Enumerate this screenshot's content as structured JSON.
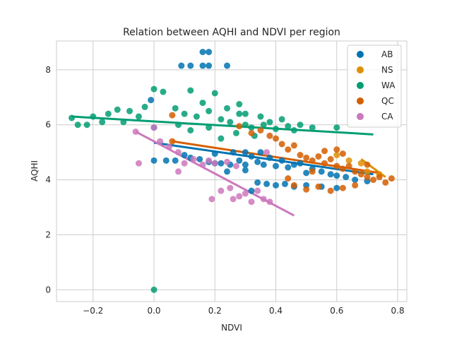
{
  "chart_data": {
    "type": "scatter",
    "title": "Relation between AQHI and NDVI per region",
    "xlabel": "NDVI",
    "ylabel": "AQHI",
    "xlim": [
      -0.32,
      0.83
    ],
    "ylim": [
      -0.43,
      9.05
    ],
    "xticks": [
      -0.2,
      0.0,
      0.2,
      0.4,
      0.6,
      0.8
    ],
    "xtick_labels": [
      "−0.2",
      "0.0",
      "0.2",
      "0.4",
      "0.6",
      "0.8"
    ],
    "yticks": [
      0,
      2,
      4,
      6,
      8
    ],
    "ytick_labels": [
      "0",
      "2",
      "4",
      "6",
      "8"
    ],
    "grid": true,
    "legend_position": "top-right",
    "series": [
      {
        "name": "AB",
        "color": "#0173b2",
        "points": [
          [
            0.16,
            8.65
          ],
          [
            0.18,
            8.65
          ],
          [
            0.09,
            8.15
          ],
          [
            0.12,
            8.15
          ],
          [
            0.16,
            8.15
          ],
          [
            0.18,
            8.15
          ],
          [
            0.24,
            8.15
          ],
          [
            0.0,
            5.9
          ],
          [
            -0.01,
            6.9
          ],
          [
            0.0,
            4.7
          ],
          [
            0.04,
            4.7
          ],
          [
            0.07,
            4.7
          ],
          [
            0.1,
            4.9
          ],
          [
            0.12,
            4.8
          ],
          [
            0.15,
            4.75
          ],
          [
            0.18,
            4.65
          ],
          [
            0.2,
            4.6
          ],
          [
            0.22,
            4.6
          ],
          [
            0.25,
            4.55
          ],
          [
            0.28,
            4.7
          ],
          [
            0.3,
            4.55
          ],
          [
            0.32,
            4.85
          ],
          [
            0.34,
            4.65
          ],
          [
            0.36,
            4.55
          ],
          [
            0.38,
            4.8
          ],
          [
            0.4,
            4.5
          ],
          [
            0.42,
            4.7
          ],
          [
            0.44,
            4.45
          ],
          [
            0.46,
            4.55
          ],
          [
            0.48,
            4.6
          ],
          [
            0.5,
            4.25
          ],
          [
            0.52,
            4.4
          ],
          [
            0.55,
            4.3
          ],
          [
            0.58,
            4.2
          ],
          [
            0.6,
            4.15
          ],
          [
            0.63,
            4.1
          ],
          [
            0.66,
            4.0
          ],
          [
            0.7,
            3.95
          ],
          [
            0.34,
            3.9
          ],
          [
            0.37,
            3.85
          ],
          [
            0.4,
            3.8
          ],
          [
            0.43,
            3.85
          ],
          [
            0.46,
            3.75
          ],
          [
            0.5,
            3.8
          ],
          [
            0.55,
            3.75
          ],
          [
            0.6,
            3.7
          ],
          [
            0.32,
            3.6
          ],
          [
            0.2,
            4.95
          ],
          [
            0.26,
            5.0
          ],
          [
            0.3,
            5.0
          ],
          [
            0.35,
            5.0
          ],
          [
            0.24,
            4.3
          ],
          [
            0.3,
            4.35
          ]
        ],
        "trend": [
          [
            0.0,
            5.35
          ],
          [
            0.72,
            4.2
          ]
        ]
      },
      {
        "name": "NS",
        "color": "#de8f05",
        "points": [
          [
            0.6,
            4.9
          ],
          [
            0.64,
            4.7
          ],
          [
            0.68,
            4.6
          ],
          [
            0.7,
            4.3
          ],
          [
            0.74,
            4.2
          ]
        ],
        "trend": [
          [
            0.68,
            4.75
          ],
          [
            0.76,
            4.1
          ]
        ]
      },
      {
        "name": "WA",
        "color": "#029e73",
        "points": [
          [
            -0.27,
            6.25
          ],
          [
            -0.25,
            6.0
          ],
          [
            -0.22,
            6.0
          ],
          [
            -0.2,
            6.3
          ],
          [
            -0.17,
            6.1
          ],
          [
            -0.15,
            6.4
          ],
          [
            -0.12,
            6.55
          ],
          [
            -0.1,
            6.1
          ],
          [
            -0.08,
            6.5
          ],
          [
            -0.05,
            6.3
          ],
          [
            -0.03,
            6.65
          ],
          [
            0.0,
            7.3
          ],
          [
            0.03,
            7.2
          ],
          [
            0.07,
            6.6
          ],
          [
            0.1,
            6.4
          ],
          [
            0.12,
            7.25
          ],
          [
            0.14,
            6.3
          ],
          [
            0.16,
            6.8
          ],
          [
            0.18,
            6.5
          ],
          [
            0.2,
            7.15
          ],
          [
            0.22,
            6.2
          ],
          [
            0.25,
            6.1
          ],
          [
            0.28,
            6.4
          ],
          [
            0.3,
            6.0
          ],
          [
            0.32,
            5.9
          ],
          [
            0.35,
            6.3
          ],
          [
            0.38,
            6.1
          ],
          [
            0.4,
            5.85
          ],
          [
            0.42,
            6.2
          ],
          [
            0.44,
            5.95
          ],
          [
            0.46,
            5.8
          ],
          [
            0.48,
            6.0
          ],
          [
            0.52,
            5.9
          ],
          [
            0.6,
            5.9
          ],
          [
            0.28,
            6.75
          ],
          [
            0.24,
            6.6
          ],
          [
            0.3,
            6.4
          ],
          [
            0.36,
            6.0
          ],
          [
            0.08,
            6.0
          ],
          [
            0.12,
            5.8
          ],
          [
            0.18,
            5.9
          ],
          [
            0.22,
            5.5
          ],
          [
            0.27,
            5.7
          ],
          [
            0.33,
            5.6
          ],
          [
            0.0,
            0.0
          ]
        ],
        "trend": [
          [
            -0.27,
            6.3
          ],
          [
            0.72,
            5.65
          ]
        ]
      },
      {
        "name": "QC",
        "color": "#d55e00",
        "points": [
          [
            0.06,
            6.35
          ],
          [
            0.06,
            5.4
          ],
          [
            0.28,
            5.95
          ],
          [
            0.32,
            5.7
          ],
          [
            0.35,
            5.8
          ],
          [
            0.38,
            5.6
          ],
          [
            0.4,
            5.5
          ],
          [
            0.42,
            5.3
          ],
          [
            0.44,
            5.1
          ],
          [
            0.46,
            5.25
          ],
          [
            0.48,
            4.9
          ],
          [
            0.5,
            4.8
          ],
          [
            0.52,
            4.7
          ],
          [
            0.54,
            4.85
          ],
          [
            0.56,
            4.6
          ],
          [
            0.58,
            4.75
          ],
          [
            0.6,
            4.5
          ],
          [
            0.62,
            4.4
          ],
          [
            0.64,
            4.5
          ],
          [
            0.66,
            4.3
          ],
          [
            0.68,
            4.2
          ],
          [
            0.7,
            4.1
          ],
          [
            0.72,
            4.0
          ],
          [
            0.74,
            4.1
          ],
          [
            0.76,
            3.9
          ],
          [
            0.78,
            4.05
          ],
          [
            0.66,
            3.8
          ],
          [
            0.62,
            3.7
          ],
          [
            0.58,
            3.6
          ],
          [
            0.54,
            3.75
          ],
          [
            0.5,
            3.65
          ],
          [
            0.46,
            3.8
          ],
          [
            0.44,
            4.05
          ],
          [
            0.56,
            5.05
          ],
          [
            0.6,
            5.1
          ],
          [
            0.52,
            4.3
          ],
          [
            0.62,
            4.95
          ],
          [
            0.7,
            4.55
          ]
        ],
        "trend": [
          [
            0.06,
            5.4
          ],
          [
            0.74,
            4.25
          ]
        ]
      },
      {
        "name": "CA",
        "color": "#cc78bc",
        "points": [
          [
            -0.06,
            5.75
          ],
          [
            -0.05,
            4.6
          ],
          [
            0.0,
            5.9
          ],
          [
            0.02,
            5.4
          ],
          [
            0.05,
            5.2
          ],
          [
            0.08,
            5.0
          ],
          [
            0.1,
            4.6
          ],
          [
            0.13,
            4.75
          ],
          [
            0.16,
            4.55
          ],
          [
            0.18,
            4.7
          ],
          [
            0.2,
            4.6
          ],
          [
            0.22,
            3.6
          ],
          [
            0.25,
            3.7
          ],
          [
            0.26,
            3.3
          ],
          [
            0.28,
            3.4
          ],
          [
            0.3,
            3.5
          ],
          [
            0.32,
            3.2
          ],
          [
            0.34,
            3.6
          ],
          [
            0.36,
            3.3
          ],
          [
            0.38,
            3.2
          ],
          [
            0.24,
            4.65
          ],
          [
            0.27,
            4.5
          ],
          [
            0.37,
            5.0
          ],
          [
            0.08,
            4.3
          ],
          [
            0.19,
            3.3
          ]
        ],
        "trend": [
          [
            -0.06,
            5.75
          ],
          [
            0.46,
            2.7
          ]
        ]
      }
    ]
  }
}
